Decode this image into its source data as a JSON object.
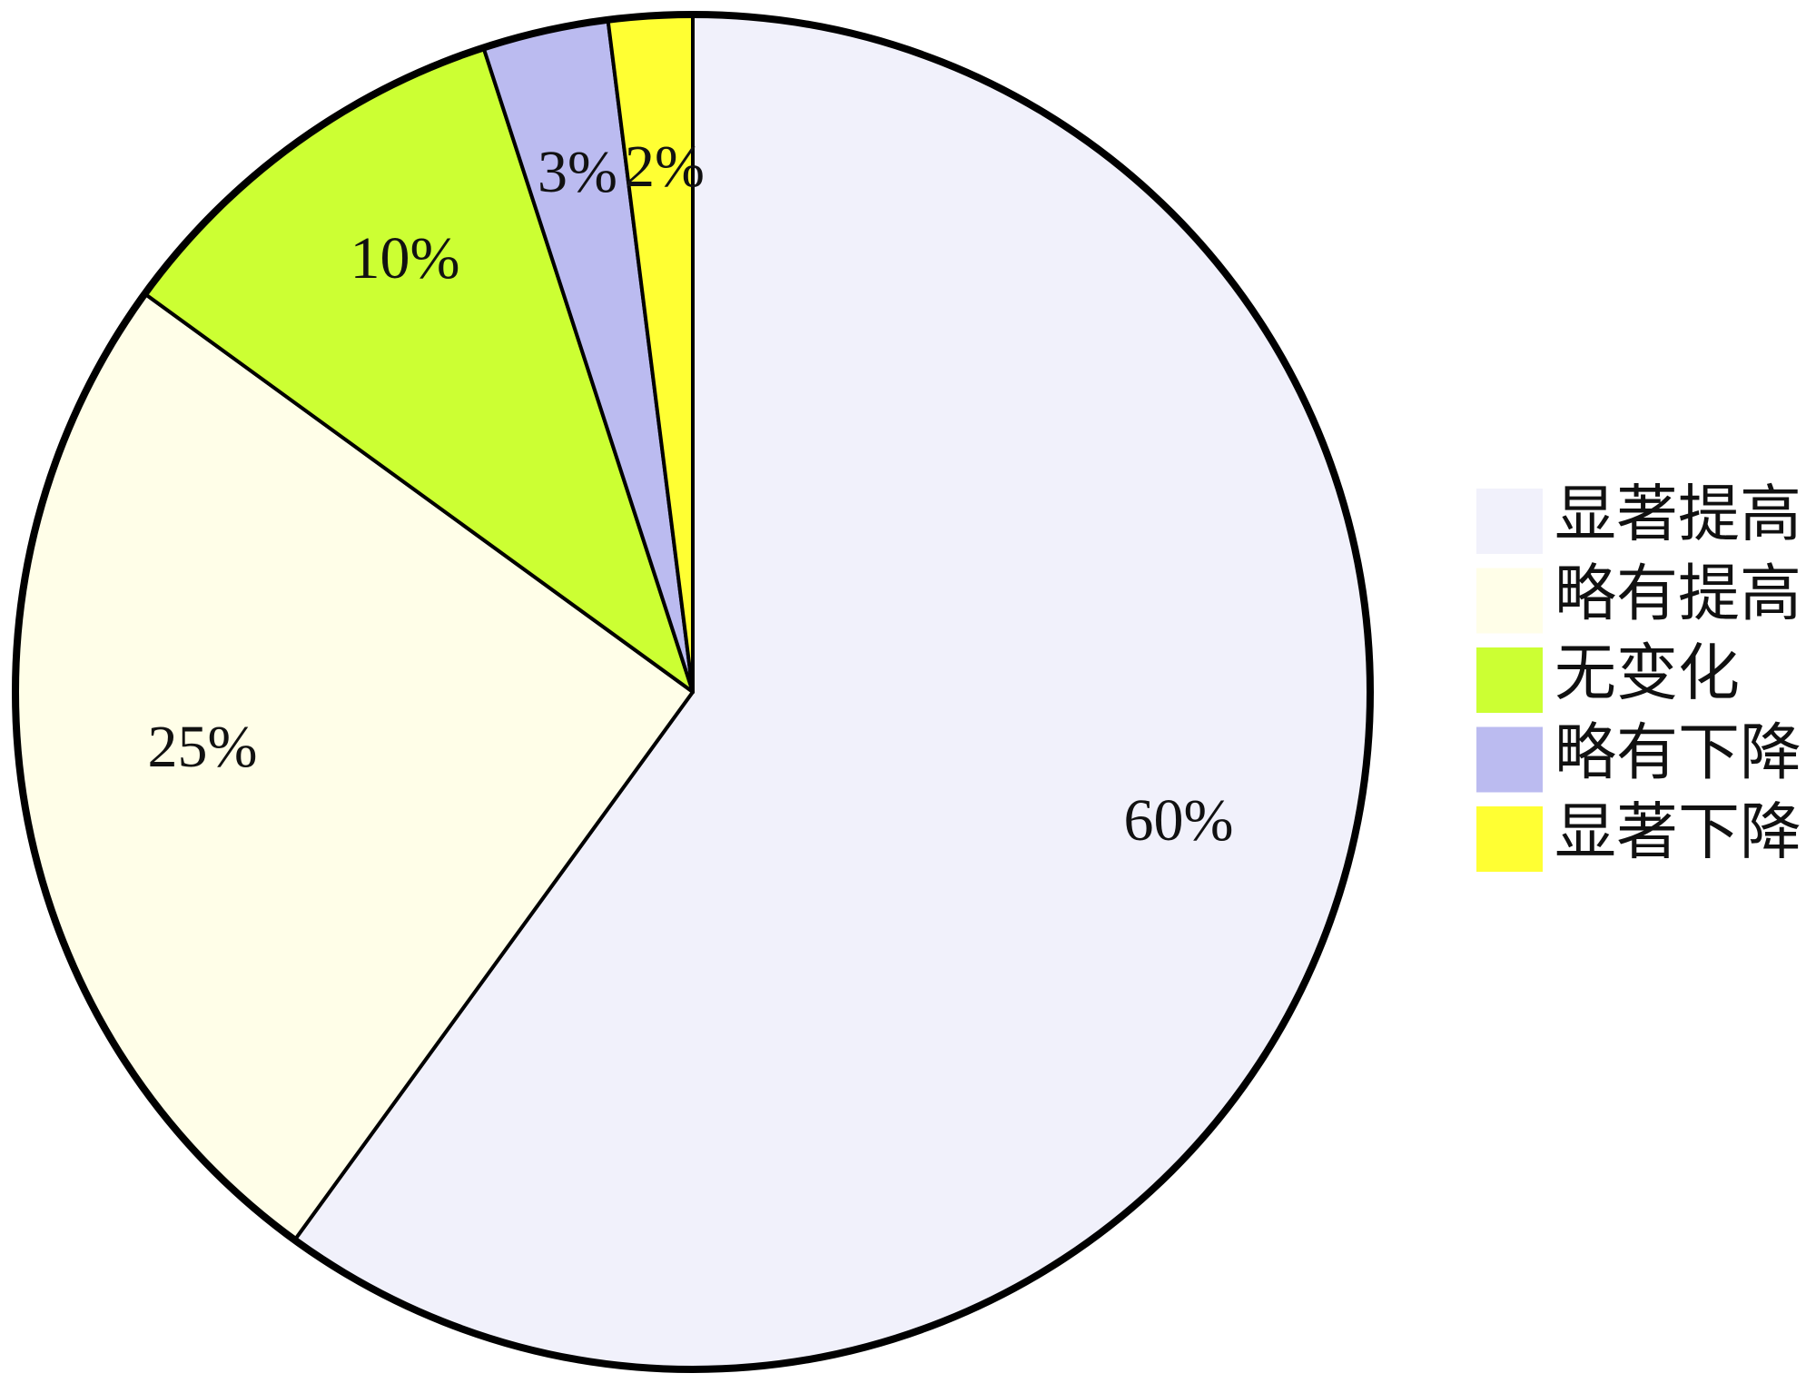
{
  "chart_data": {
    "type": "pie",
    "categories": [
      "显著提高",
      "略有提高",
      "无变化",
      "略有下降",
      "显著下降"
    ],
    "values": [
      60,
      25,
      10,
      3,
      2
    ],
    "value_labels": [
      "60%",
      "25%",
      "10%",
      "3%",
      "2%"
    ],
    "colors": [
      "#f1f1fb",
      "#fffee8",
      "#ccff33",
      "#bbbbf0",
      "#ffff33"
    ],
    "legend": "right"
  }
}
